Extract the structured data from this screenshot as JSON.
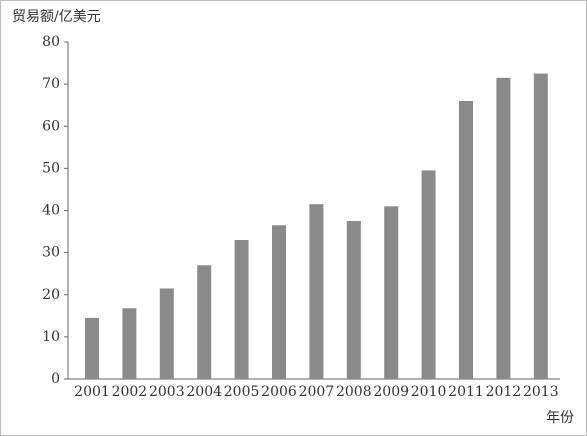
{
  "chart_data": {
    "type": "bar",
    "y_label": "贸易额/亿美元",
    "x_label": "年份",
    "categories": [
      "2001",
      "2002",
      "2003",
      "2004",
      "2005",
      "2006",
      "2007",
      "2008",
      "2009",
      "2010",
      "2011",
      "2012",
      "2013"
    ],
    "values": [
      14.5,
      16.8,
      21.5,
      27,
      33,
      36.5,
      41.5,
      37.5,
      41,
      49.5,
      66,
      71.5,
      72.5
    ],
    "color": "#8a8a8a",
    "ylim": [
      0,
      80
    ],
    "yticks": [
      0,
      10,
      20,
      30,
      40,
      50,
      60,
      70,
      80
    ],
    "grid": false
  }
}
